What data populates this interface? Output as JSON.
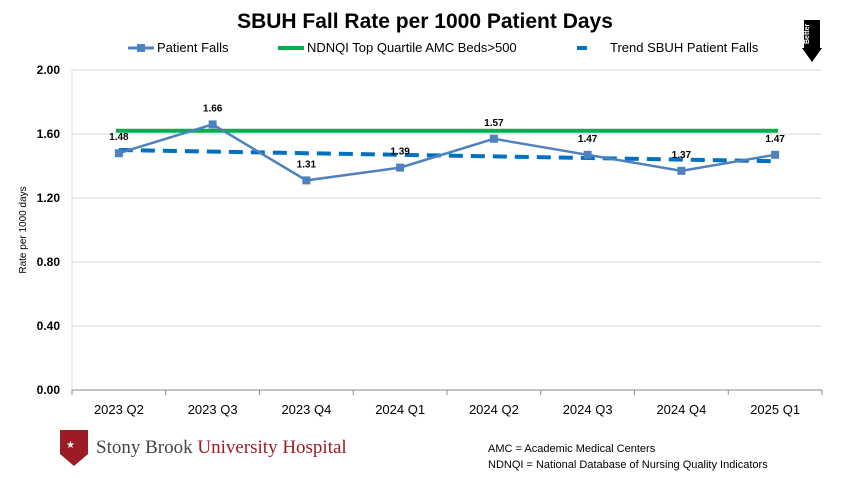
{
  "chart_data": {
    "type": "line",
    "title": "SBUH Fall Rate per 1000 Patient Days",
    "ylabel": "Rate per 1000 days",
    "xlabel": "",
    "ylim": [
      0,
      2
    ],
    "yticks": [
      "0.00",
      "0.40",
      "0.80",
      "1.20",
      "1.60",
      "2.00"
    ],
    "categories": [
      "2023 Q2",
      "2023 Q3",
      "2023 Q4",
      "2024 Q1",
      "2024 Q2",
      "2024 Q3",
      "2024 Q4",
      "2025 Q1"
    ],
    "series": [
      {
        "name": "Patient Falls",
        "values": [
          1.48,
          1.66,
          1.31,
          1.39,
          1.57,
          1.47,
          1.37,
          1.47
        ],
        "labels": [
          "1.48",
          "1.66",
          "1.31",
          "1.39",
          "1.57",
          "1.47",
          "1.37",
          "1.47"
        ],
        "color": "#4f81bd"
      },
      {
        "name": "NDNQI Top Quartile AMC Beds>500",
        "values": [
          1.62,
          1.62,
          1.62,
          1.62,
          1.62,
          1.62,
          1.62,
          1.62
        ],
        "color": "#00b050"
      },
      {
        "name": "Trend SBUH Patient Falls",
        "values": [
          1.5,
          1.49,
          1.48,
          1.47,
          1.46,
          1.45,
          1.44,
          1.43
        ],
        "color": "#0070c0"
      }
    ],
    "grid": true,
    "legend": "top",
    "annotation": "Better"
  },
  "footer": {
    "logo": "Stony Brook University Hospital",
    "logo_a": "Stony Brook ",
    "logo_b": "University Hospital",
    "note1": "AMC = Academic Medical Centers",
    "note2": "NDNQI = National Database of Nursing Quality Indicators"
  }
}
